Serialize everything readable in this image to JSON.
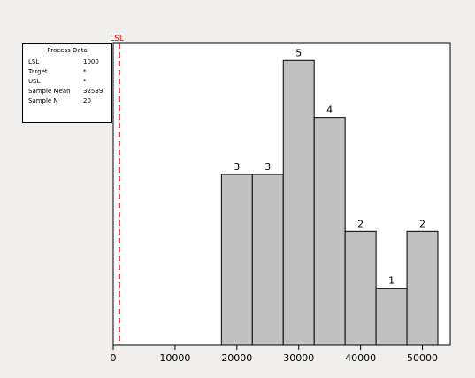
{
  "colors": {
    "frame_bg": "#f0efee",
    "plot_bg": "#ffffff",
    "bar_fill": "#c0c0c0",
    "bar_stroke": "#000000",
    "spec_line": "#ff0000"
  },
  "process_data": {
    "title": "Process Data",
    "rows": [
      {
        "label": "LSL",
        "value": "1000"
      },
      {
        "label": "Target",
        "value": "*"
      },
      {
        "label": "USL",
        "value": "*"
      },
      {
        "label": "Sample Mean",
        "value": "32539"
      },
      {
        "label": "Sample N",
        "value": "20"
      }
    ]
  },
  "chart_data": {
    "type": "bar",
    "title": "",
    "xlabel": "",
    "ylabel": "",
    "bin_edges": [
      17500,
      22500,
      27500,
      32500,
      37500,
      42500,
      47500,
      52500
    ],
    "counts": [
      3,
      3,
      5,
      4,
      2,
      1,
      2
    ],
    "x_ticks": [
      0,
      10000,
      20000,
      30000,
      40000,
      50000
    ],
    "x_tick_labels": [
      "0",
      "10000",
      "20000",
      "30000",
      "40000",
      "50000"
    ],
    "xlim": [
      0,
      54500
    ],
    "ylim": [
      0,
      5.3
    ],
    "reference_lines": [
      {
        "label": "LSL",
        "x": 1000
      }
    ],
    "grid": false
  }
}
